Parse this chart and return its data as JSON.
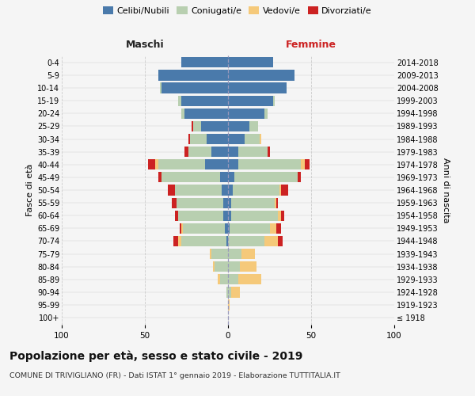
{
  "age_groups": [
    "100+",
    "95-99",
    "90-94",
    "85-89",
    "80-84",
    "75-79",
    "70-74",
    "65-69",
    "60-64",
    "55-59",
    "50-54",
    "45-49",
    "40-44",
    "35-39",
    "30-34",
    "25-29",
    "20-24",
    "15-19",
    "10-14",
    "5-9",
    "0-4"
  ],
  "birth_years": [
    "≤ 1918",
    "1919-1923",
    "1924-1928",
    "1929-1933",
    "1934-1938",
    "1939-1943",
    "1944-1948",
    "1949-1953",
    "1954-1958",
    "1959-1963",
    "1964-1968",
    "1969-1973",
    "1974-1978",
    "1979-1983",
    "1984-1988",
    "1989-1993",
    "1994-1998",
    "1999-2003",
    "2004-2008",
    "2009-2013",
    "2014-2018"
  ],
  "male": {
    "celibi": [
      0,
      0,
      0,
      0,
      0,
      0,
      1,
      2,
      3,
      3,
      4,
      5,
      14,
      10,
      13,
      16,
      26,
      28,
      40,
      42,
      28
    ],
    "coniugati": [
      0,
      0,
      1,
      5,
      8,
      10,
      27,
      25,
      27,
      28,
      28,
      35,
      28,
      14,
      10,
      5,
      2,
      2,
      1,
      0,
      0
    ],
    "vedovi": [
      0,
      0,
      0,
      1,
      1,
      1,
      2,
      1,
      0,
      0,
      0,
      0,
      2,
      0,
      0,
      0,
      0,
      0,
      0,
      0,
      0
    ],
    "divorziati": [
      0,
      0,
      0,
      0,
      0,
      0,
      3,
      1,
      2,
      3,
      4,
      2,
      4,
      2,
      1,
      1,
      0,
      0,
      0,
      0,
      0
    ]
  },
  "female": {
    "nubili": [
      0,
      0,
      0,
      0,
      0,
      0,
      0,
      1,
      2,
      2,
      3,
      4,
      6,
      6,
      10,
      13,
      22,
      27,
      35,
      40,
      27
    ],
    "coniugate": [
      0,
      0,
      2,
      6,
      7,
      8,
      22,
      24,
      28,
      26,
      28,
      38,
      38,
      18,
      9,
      5,
      2,
      1,
      0,
      0,
      0
    ],
    "vedove": [
      0,
      1,
      5,
      14,
      10,
      8,
      8,
      4,
      2,
      1,
      1,
      0,
      2,
      0,
      1,
      0,
      0,
      0,
      0,
      0,
      0
    ],
    "divorziate": [
      0,
      0,
      0,
      0,
      0,
      0,
      3,
      3,
      2,
      1,
      4,
      2,
      3,
      1,
      0,
      0,
      0,
      0,
      0,
      0,
      0
    ]
  },
  "color_celibi": "#4a7aab",
  "color_coniugati": "#b8cfb0",
  "color_vedovi": "#f5c97a",
  "color_divorziati": "#cc2222",
  "title": "Popolazione per età, sesso e stato civile - 2019",
  "subtitle": "COMUNE DI TRIVIGLIANO (FR) - Dati ISTAT 1° gennaio 2019 - Elaborazione TUTTITALIA.IT",
  "xlabel_left": "Maschi",
  "xlabel_right": "Femmine",
  "ylabel_left": "Fasce di età",
  "ylabel_right": "Anni di nascita",
  "xlim": 100,
  "legend_labels": [
    "Celibi/Nubili",
    "Coniugati/e",
    "Vedovi/e",
    "Divorziati/e"
  ],
  "bg_color": "#f5f5f5",
  "bar_height": 0.82
}
